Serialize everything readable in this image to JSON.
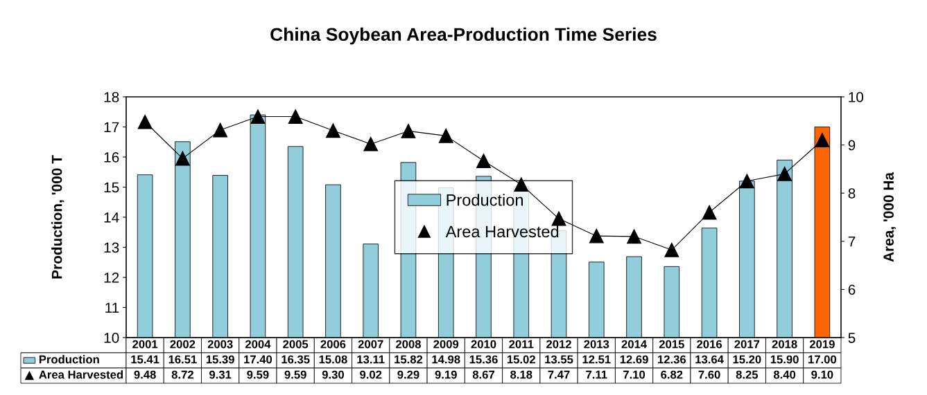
{
  "chart_data": {
    "type": "bar",
    "title": "China Soybean Area-Production Time Series",
    "ylabel": "Production, '000 T",
    "y2label": "Area, '000 Ha",
    "categories": [
      "2001",
      "2002",
      "2003",
      "2004",
      "2005",
      "2006",
      "2007",
      "2008",
      "2009",
      "2010",
      "2011",
      "2012",
      "2013",
      "2014",
      "2015",
      "2016",
      "2017",
      "2018",
      "2019"
    ],
    "series": [
      {
        "name": "Production",
        "colors": [
          "#92cddc",
          "#92cddc",
          "#92cddc",
          "#92cddc",
          "#92cddc",
          "#92cddc",
          "#92cddc",
          "#92cddc",
          "#92cddc",
          "#92cddc",
          "#92cddc",
          "#92cddc",
          "#92cddc",
          "#92cddc",
          "#92cddc",
          "#92cddc",
          "#92cddc",
          "#92cddc",
          "#ff6600"
        ],
        "values": [
          15.41,
          16.51,
          15.39,
          17.4,
          16.35,
          15.08,
          13.11,
          15.82,
          14.98,
          15.36,
          15.02,
          13.55,
          12.51,
          12.69,
          12.36,
          13.64,
          15.2,
          15.9,
          17.0
        ],
        "value_labels": [
          "15.41",
          "16.51",
          "15.39",
          "17.40",
          "16.35",
          "15.08",
          "13.11",
          "15.82",
          "14.98",
          "15.36",
          "15.02",
          "13.55",
          "12.51",
          "12.69",
          "12.36",
          "13.64",
          "15.20",
          "15.90",
          "17.00"
        ]
      },
      {
        "name": "Area Harvested",
        "type": "line",
        "axis": "y2",
        "color": "#000000",
        "marker": "triangle",
        "values": [
          9.48,
          8.72,
          9.31,
          9.59,
          9.59,
          9.3,
          9.02,
          9.29,
          9.19,
          8.67,
          8.18,
          7.47,
          7.11,
          7.1,
          6.82,
          7.6,
          8.25,
          8.4,
          9.1
        ],
        "value_labels": [
          "9.48",
          "8.72",
          "9.31",
          "9.59",
          "9.59",
          "9.30",
          "9.02",
          "9.29",
          "9.19",
          "8.67",
          "8.18",
          "7.47",
          "7.11",
          "7.10",
          "6.82",
          "7.60",
          "8.25",
          "8.40",
          "9.10"
        ]
      }
    ],
    "ylim": [
      10,
      18
    ],
    "yticks": [
      10,
      11,
      12,
      13,
      14,
      15,
      16,
      17,
      18
    ],
    "y2lim": [
      5,
      10
    ],
    "y2ticks": [
      5,
      6,
      7,
      8,
      9,
      10
    ],
    "legend": "center",
    "grid": false
  }
}
